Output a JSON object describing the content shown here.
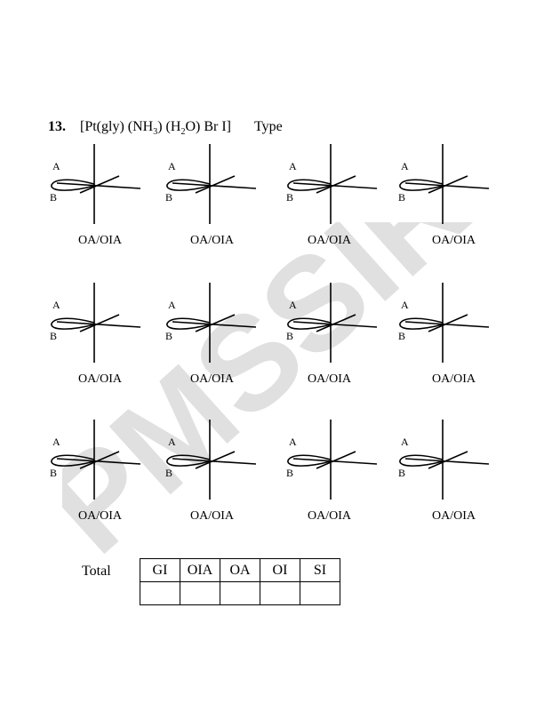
{
  "question": {
    "number": "13.",
    "formula_parts": [
      "[Pt(gly) (NH",
      "3",
      ") (H",
      "2",
      "O)  Br I]"
    ],
    "type_label": "Type"
  },
  "watermark": {
    "text": "PMSSIR",
    "color": "#d9d9d9"
  },
  "diagrams": {
    "label_a": "A",
    "label_b": "B",
    "rows": [
      [
        "OA/OIA",
        "OA/OIA",
        "OA/OIA",
        "OA/OIA"
      ],
      [
        "OA/OIA",
        "OA/OIA",
        "OA/OIA",
        "OA/OIA"
      ],
      [
        "OA/OIA",
        "OA/OIA",
        "OA/OIA",
        "OA/OIA"
      ]
    ]
  },
  "total": {
    "label": "Total",
    "headers": [
      "GI",
      "OIA",
      "OA",
      "OI",
      "SI"
    ]
  }
}
